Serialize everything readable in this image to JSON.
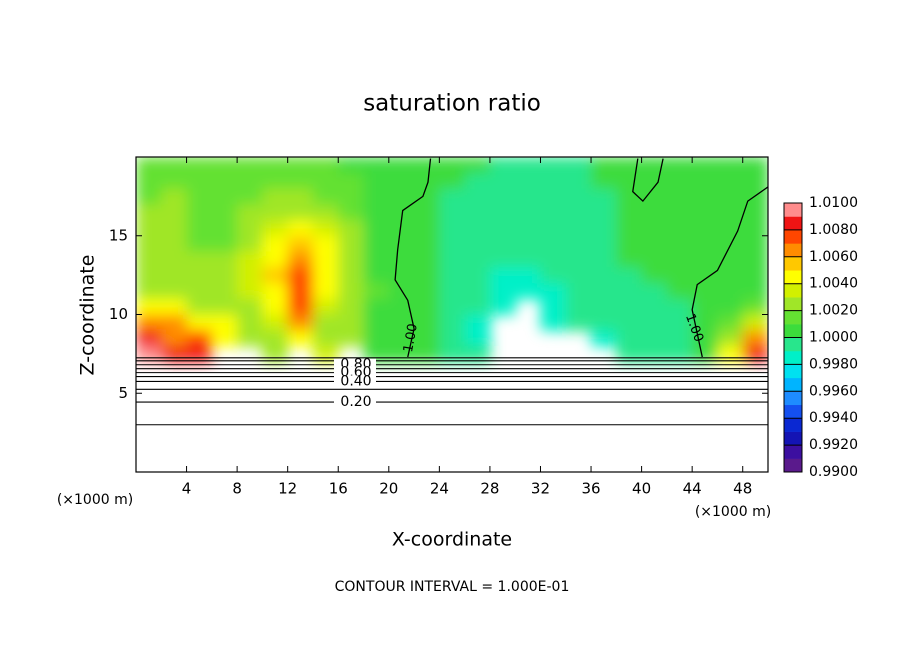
{
  "chart_data": {
    "type": "contour",
    "title": "saturation ratio",
    "xlabel": "X-coordinate",
    "ylabel": "Z-coordinate",
    "x_unit_label": "(×1000 m)",
    "y_unit_label": "(×1000 m)",
    "footer": "CONTOUR INTERVAL = 1.000E-01",
    "xlim": [
      0,
      50
    ],
    "ylim": [
      0,
      20
    ],
    "xticks": [
      4,
      8,
      12,
      16,
      20,
      24,
      28,
      32,
      36,
      40,
      44,
      48
    ],
    "yticks": [
      5,
      10,
      15
    ],
    "x": [
      1,
      3,
      5,
      7,
      9,
      11,
      13,
      15,
      17,
      19,
      21,
      23,
      25,
      27,
      29,
      31,
      33,
      35,
      37,
      39,
      41,
      43,
      45,
      47,
      49
    ],
    "y": [
      19.5,
      18.5,
      17.5,
      16.5,
      15.5,
      14.5,
      13.5,
      12.5,
      11.5,
      10.5,
      9.5,
      8.5,
      7.5
    ],
    "values": [
      [
        1.0015,
        1.0015,
        1.0015,
        1.0012,
        1.0012,
        1.0015,
        1.0015,
        1.0012,
        1.001,
        1.0008,
        1.0003,
        1.0003,
        1.0002,
        1.0,
        0.9998,
        0.9998,
        0.9998,
        0.9999,
        1.0,
        1.0002,
        1.0002,
        1.0002,
        1.0002,
        1.0002,
        1.0003
      ],
      [
        1.0015,
        1.0018,
        1.0018,
        1.0012,
        1.0015,
        1.0018,
        1.0018,
        1.0015,
        1.0012,
        1.0008,
        1.0003,
        1.0002,
        1.0,
        0.9998,
        0.9997,
        0.9996,
        0.9997,
        0.9998,
        1.0,
        1.0002,
        1.0002,
        1.0002,
        1.0002,
        1.0002,
        1.0003
      ],
      [
        1.0018,
        1.002,
        1.0018,
        1.0015,
        1.0018,
        1.002,
        1.002,
        1.0018,
        1.0012,
        1.0008,
        1.0003,
        1.0002,
        0.9999,
        0.9997,
        0.9995,
        0.9994,
        0.9995,
        0.9997,
        0.9999,
        1.0001,
        1.0002,
        1.0002,
        1.0002,
        1.0002,
        1.0002
      ],
      [
        1.002,
        1.0022,
        1.0018,
        1.0015,
        1.002,
        1.0025,
        1.003,
        1.0025,
        1.0015,
        1.0008,
        1.0003,
        1.0001,
        0.9998,
        0.9995,
        0.9993,
        0.9993,
        0.9994,
        0.9996,
        0.9999,
        1.0001,
        1.0002,
        1.0002,
        1.0002,
        1.0002,
        1.0002
      ],
      [
        1.0022,
        1.002,
        1.0018,
        1.0015,
        1.0025,
        1.0035,
        1.0042,
        1.0035,
        1.002,
        1.0008,
        1.0003,
        1.0001,
        0.9998,
        0.9994,
        0.9992,
        0.9993,
        0.9993,
        0.9995,
        0.9998,
        1.0001,
        1.0002,
        1.0002,
        1.0002,
        1.0002,
        1.0003
      ],
      [
        1.002,
        1.002,
        1.0018,
        1.0018,
        1.003,
        1.0045,
        1.0058,
        1.0045,
        1.0025,
        1.001,
        1.0003,
        1.0001,
        0.9998,
        0.9993,
        0.9991,
        0.9992,
        0.9993,
        0.9995,
        0.9998,
        1.0,
        1.0002,
        1.0002,
        1.0002,
        1.0003,
        1.0003
      ],
      [
        1.002,
        1.002,
        1.002,
        1.002,
        1.0035,
        1.005,
        1.0068,
        1.005,
        1.0028,
        1.001,
        1.0003,
        1.0001,
        0.9997,
        0.9992,
        0.999,
        0.9991,
        0.9992,
        0.9993,
        0.9996,
        1.0,
        1.0002,
        1.0002,
        1.0002,
        1.0003,
        1.0003
      ],
      [
        1.0025,
        1.0022,
        1.002,
        1.0022,
        1.0035,
        1.0052,
        1.0075,
        1.005,
        1.0028,
        1.001,
        1.0003,
        1.0001,
        0.9997,
        0.9991,
        0.9988,
        0.9988,
        0.999,
        0.9992,
        0.9996,
        0.9999,
        1.0001,
        1.0002,
        1.0002,
        1.0003,
        1.0004
      ],
      [
        1.003,
        1.0025,
        1.002,
        1.0025,
        1.0035,
        1.0045,
        1.0078,
        1.0045,
        1.0028,
        1.0012,
        1.0003,
        1.0001,
        0.9997,
        0.9991,
        0.9985,
        0.9986,
        0.9989,
        0.9991,
        0.9995,
        0.9998,
        0.9999,
        1.0001,
        1.0002,
        1.0004,
        1.0006
      ],
      [
        1.0045,
        1.004,
        1.003,
        1.003,
        1.003,
        1.004,
        1.0075,
        1.0035,
        1.0025,
        1.001,
        1.0003,
        1.0001,
        0.9997,
        0.999,
        0.9985,
        null,
        0.9988,
        0.999,
        0.9993,
        0.9997,
        0.9997,
        0.9999,
        1.0002,
        1.0006,
        1.0012
      ],
      [
        1.0065,
        1.006,
        1.005,
        1.0045,
        1.0025,
        1.0035,
        1.0065,
        1.003,
        1.0025,
        1.001,
        1.0003,
        1.0001,
        0.9997,
        0.9989,
        null,
        null,
        0.9985,
        0.999,
        0.9992,
        0.9995,
        0.9996,
        0.9998,
        1.0003,
        1.0015,
        1.0035
      ],
      [
        1.0082,
        1.007,
        1.0072,
        1.004,
        1.002,
        1.003,
        1.005,
        1.003,
        1.002,
        1.001,
        1.0003,
        1.0001,
        0.9995,
        0.9988,
        null,
        null,
        null,
        null,
        0.9988,
        0.999,
        0.9995,
        0.9998,
        1.0005,
        1.003,
        1.006
      ],
      [
        1.0095,
        1.008,
        1.009,
        null,
        null,
        1.003,
        null,
        1.0035,
        null,
        1.001,
        1.0003,
        1.0001,
        0.9995,
        0.999,
        null,
        null,
        null,
        null,
        null,
        0.9992,
        0.9994,
        0.9995,
        1.001,
        1.005,
        1.008
      ]
    ],
    "colorbar": {
      "lim": [
        0.99,
        1.01
      ],
      "colors": [
        "#5a1a8c",
        "#3c0fa0",
        "#1414b4",
        "#0a28d2",
        "#1450f0",
        "#1e8cff",
        "#00b4ff",
        "#00e1f0",
        "#00f0c8",
        "#28e68c",
        "#3cdc3c",
        "#64e132",
        "#a0e628",
        "#d2f000",
        "#ffff00",
        "#ffc800",
        "#ff8c00",
        "#ff4600",
        "#f01414",
        "#ff8c8c"
      ],
      "ticks": [
        {
          "value": 0.99,
          "label": "0.9900"
        },
        {
          "value": 0.992,
          "label": "0.9920"
        },
        {
          "value": 0.994,
          "label": "0.9940"
        },
        {
          "value": 0.996,
          "label": "0.9960"
        },
        {
          "value": 0.998,
          "label": "0.9980"
        },
        {
          "value": 1.0,
          "label": "1.0000"
        },
        {
          "value": 1.002,
          "label": "1.0020"
        },
        {
          "value": 1.004,
          "label": "1.0040"
        },
        {
          "value": 1.006,
          "label": "1.0060"
        },
        {
          "value": 1.008,
          "label": "1.0080"
        },
        {
          "value": 1.01,
          "label": "1.0100"
        }
      ]
    },
    "contour_line": {
      "label": "1.00",
      "x": [
        23.3,
        23.1,
        22.7,
        21.1,
        20.7,
        20.5,
        21.5,
        22.0,
        21.5,
        null,
        50.0,
        48.4,
        47.6,
        46.0,
        44.4,
        44.0,
        44.8,
        null,
        39.7,
        39.3,
        40.1,
        41.3,
        41.7
      ],
      "y": [
        19.9,
        18.4,
        17.5,
        16.6,
        14.1,
        12.2,
        10.9,
        9.1,
        7.3,
        null,
        18.1,
        17.2,
        15.3,
        12.8,
        11.9,
        10.3,
        7.3,
        null,
        19.9,
        17.8,
        17.2,
        18.4,
        19.9
      ]
    },
    "contours": [
      {
        "z": 7.25
      },
      {
        "z": 7.06
      },
      {
        "z": 6.81,
        "label": "0.80"
      },
      {
        "z": 6.56
      },
      {
        "z": 6.31,
        "label": "0.60"
      },
      {
        "z": 6.06
      },
      {
        "z": 5.75,
        "label": "0.40"
      },
      {
        "z": 5.25
      },
      {
        "z": 4.44,
        "label": "0.20"
      },
      {
        "z": 3.0
      }
    ]
  }
}
